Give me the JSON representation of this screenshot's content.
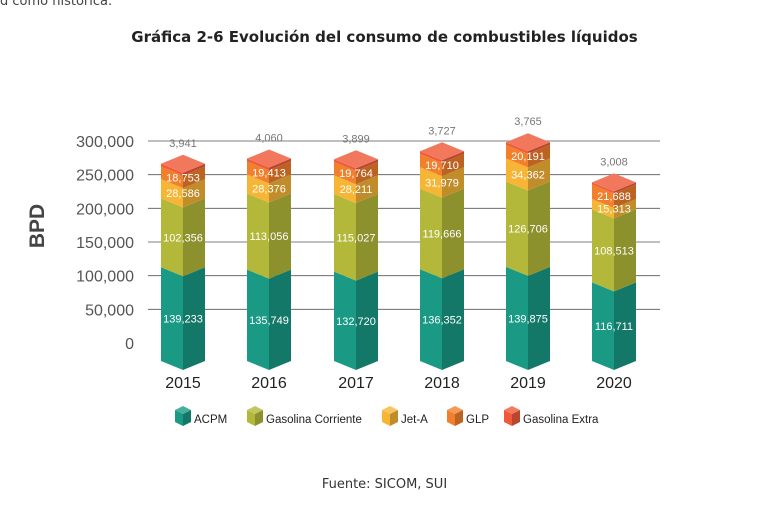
{
  "page": {
    "top_fragment": "d como historica."
  },
  "source": "Fuente: SICOM, SUI",
  "chart_data": {
    "type": "bar",
    "stacked": true,
    "title": "Gráfica 2-6 Evolución del consumo de combustibles líquidos",
    "xlabel": "",
    "ylabel": "BPD",
    "ylim": [
      0,
      300000
    ],
    "yticks": [
      "0",
      "50,000",
      "100,000",
      "150,000",
      "200,000",
      "250,000",
      "300,000"
    ],
    "grid": true,
    "legend_position": "bottom",
    "categories": [
      "2015",
      "2016",
      "2017",
      "2018",
      "2019",
      "2020"
    ],
    "series": [
      {
        "name": "ACPM",
        "color": "#1a9a85",
        "values": [
          139233,
          135749,
          132720,
          136352,
          139875,
          116711
        ],
        "labels": [
          "139,233",
          "135,749",
          "132,720",
          "136,352",
          "139,875",
          "116,711"
        ]
      },
      {
        "name": "Gasolina Corriente",
        "color": "#b3b83a",
        "values": [
          102356,
          113056,
          115027,
          119666,
          126706,
          108513
        ],
        "labels": [
          "102,356",
          "113,056",
          "115,027",
          "119,666",
          "126,706",
          "108,513"
        ]
      },
      {
        "name": "Jet-A",
        "color": "#f7b536",
        "values": [
          28586,
          28376,
          28211,
          31979,
          34362,
          15313
        ],
        "labels": [
          "28,586",
          "28,376",
          "28,211",
          "31,979",
          "34,362",
          "15,313"
        ]
      },
      {
        "name": "GLP",
        "color": "#f27f2c",
        "values": [
          18753,
          19413,
          19764,
          19710,
          20191,
          21688
        ],
        "labels": [
          "18,753",
          "19,413",
          "19,764",
          "19,710",
          "20,191",
          "21,688"
        ]
      },
      {
        "name": "Gasolina Extra",
        "color": "#ef5a3a",
        "values": [
          3941,
          4060,
          3899,
          3727,
          3765,
          3008
        ],
        "labels": [
          "3,941",
          "4,060",
          "3,899",
          "3,727",
          "3,765",
          "3,008"
        ]
      }
    ]
  }
}
